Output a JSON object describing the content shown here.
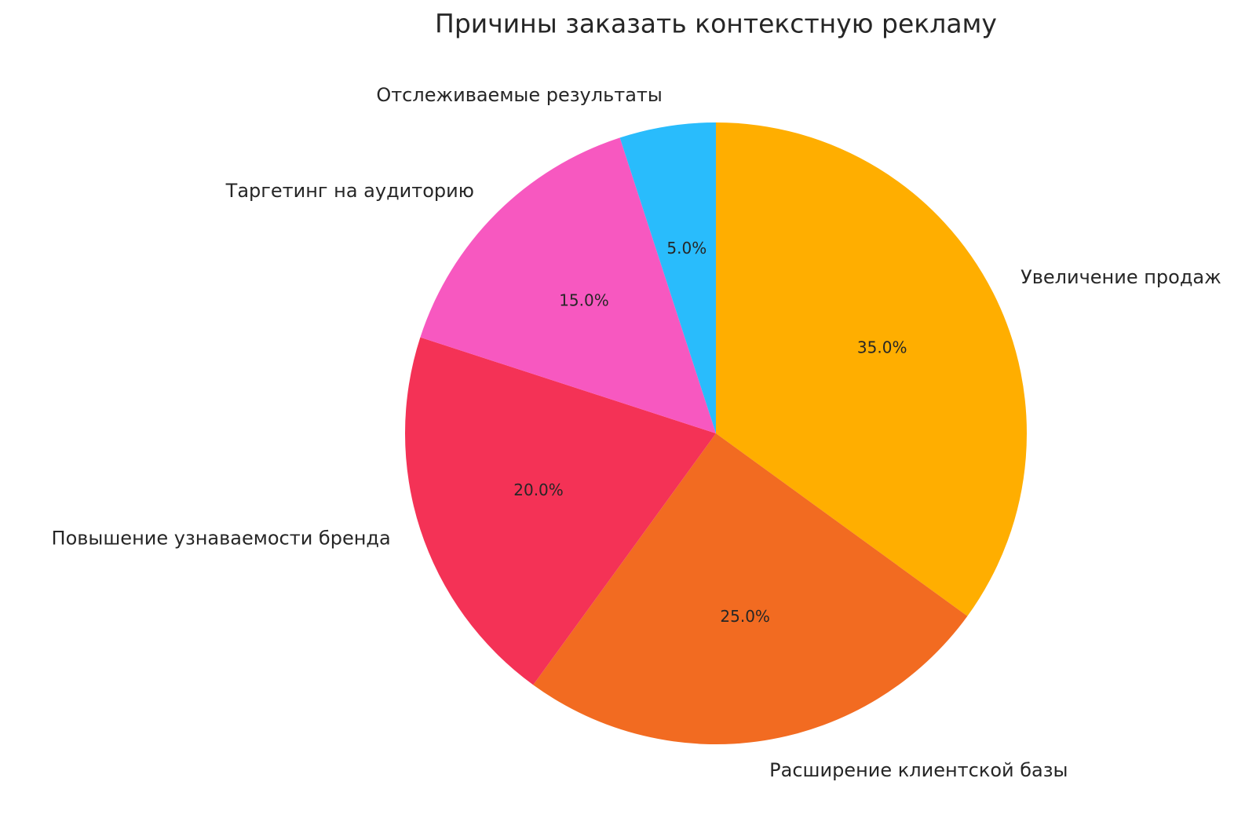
{
  "chart_data": {
    "type": "pie",
    "title": "Причины заказать контекстную рекламу",
    "categories": [
      "Увеличение продаж",
      "Расширение клиентской базы",
      "Повышение узнаваемости бренда",
      "Таргетинг на аудиторию",
      "Отслеживаемые результаты"
    ],
    "values": [
      35,
      25,
      20,
      15,
      5
    ],
    "value_labels": [
      "35.0%",
      "25.0%",
      "20.0%",
      "15.0%",
      "5.0%"
    ],
    "colors": [
      "#FFAE00",
      "#F26B21",
      "#F43256",
      "#F758C0",
      "#29BCFC"
    ]
  }
}
